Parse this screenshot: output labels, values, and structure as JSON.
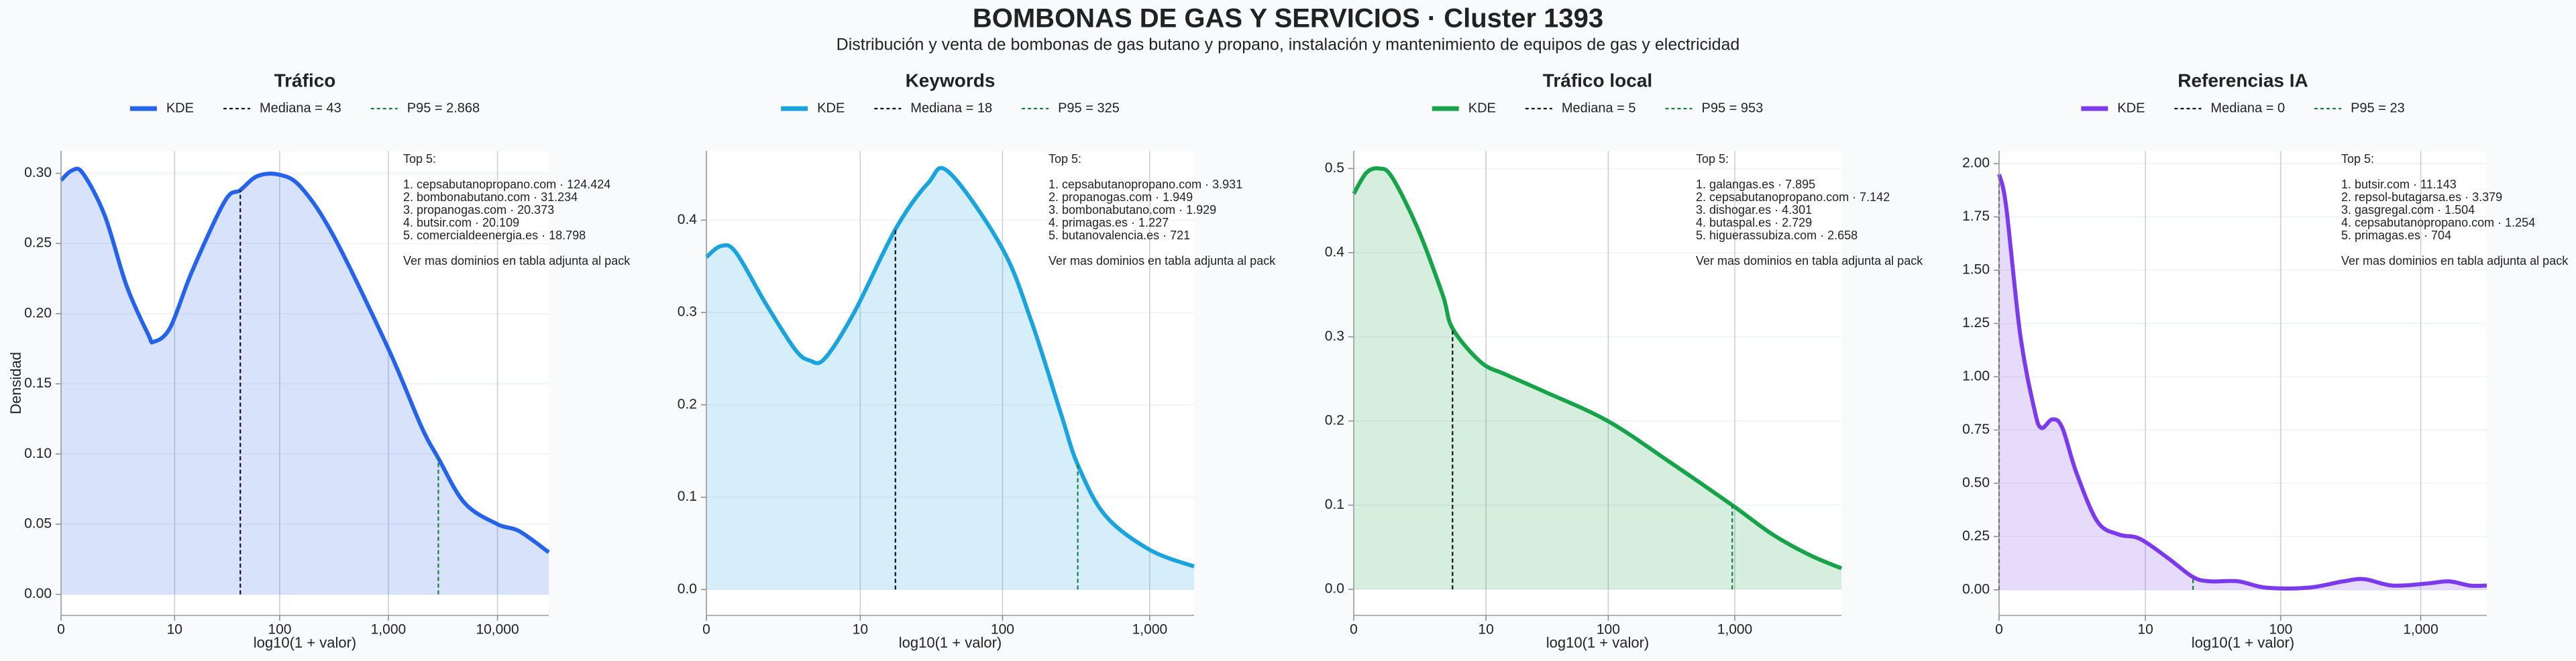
{
  "title": "BOMBONAS DE GAS Y SERVICIOS · Cluster 1393",
  "subtitle": "Distribución y venta de bombonas de gas butano y propano, instalación y mantenimiento de equipos de gas y electricidad",
  "chart_data": [
    {
      "type": "line",
      "title": "Tráfico",
      "xlabel": "log10(1 + valor)",
      "ylabel": "Densidad",
      "grid": true,
      "fill": true,
      "x": [
        0,
        0.1,
        0.2,
        0.4,
        0.6,
        0.8,
        0.85,
        1.0,
        1.2,
        1.5,
        1.643,
        1.8,
        2.0,
        2.2,
        2.5,
        3.0,
        3.3,
        3.458,
        3.7,
        4.0,
        4.2,
        4.47
      ],
      "series": [
        {
          "name": "KDE",
          "color": "#2563eb",
          "values": [
            0.295,
            0.302,
            0.3,
            0.27,
            0.22,
            0.185,
            0.18,
            0.19,
            0.23,
            0.28,
            0.288,
            0.298,
            0.299,
            0.29,
            0.255,
            0.175,
            0.12,
            0.097,
            0.065,
            0.05,
            0.045,
            0.03
          ]
        }
      ],
      "markers": [
        {
          "name": "Mediana = 43",
          "x": 1.643,
          "y": 0.288,
          "color": "#111111"
        },
        {
          "name": "P95 = 2.868",
          "x": 3.458,
          "y": 0.097,
          "color": "#15803d"
        }
      ],
      "xlim": [
        0,
        4.47
      ],
      "ylim": [
        -0.015,
        0.316
      ],
      "xticks": [
        0,
        {
          "value": 1.041,
          "label": "10"
        },
        {
          "value": 2.004,
          "label": "100"
        },
        {
          "value": 3.0,
          "label": "1,000"
        },
        {
          "value": 4.0,
          "label": "10,000"
        }
      ],
      "yticks": [
        {
          "value": 0,
          "label": "0.00"
        },
        0.05,
        {
          "value": 0.1,
          "label": "0.10"
        },
        0.15,
        {
          "value": 0.2,
          "label": "0.20"
        },
        0.25,
        {
          "value": 0.3,
          "label": "0.30"
        }
      ],
      "annotation": [
        "Top 5:",
        "1. cepsabutanopropano.com · 124.424",
        "2. bombonabutano.com · 31.234",
        "3. propanogas.com · 20.373",
        "4. butsir.com · 20.109",
        "5. comercialdeenergia.es · 18.798",
        "Ver mas dominios en tabla adjunta al pack"
      ]
    },
    {
      "type": "line",
      "title": "Keywords",
      "xlabel": "log10(1 + valor)",
      "grid": true,
      "fill": true,
      "x": [
        0,
        0.1,
        0.2,
        0.4,
        0.6,
        0.7,
        0.8,
        1.0,
        1.279,
        1.5,
        1.64,
        2.0,
        2.2,
        2.4,
        2.513,
        2.7,
        3.0,
        3.3
      ],
      "series": [
        {
          "name": "KDE",
          "color": "#1ba3dd",
          "values": [
            0.36,
            0.372,
            0.365,
            0.31,
            0.26,
            0.248,
            0.25,
            0.3,
            0.39,
            0.44,
            0.452,
            0.37,
            0.29,
            0.19,
            0.135,
            0.08,
            0.043,
            0.025
          ]
        }
      ],
      "markers": [
        {
          "name": "Mediana = 18",
          "x": 1.279,
          "y": 0.39,
          "color": "#111111"
        },
        {
          "name": "P95 = 325",
          "x": 2.513,
          "y": 0.135,
          "color": "#15803d"
        }
      ],
      "xlim": [
        0,
        3.3
      ],
      "ylim": [
        -0.028,
        0.475
      ],
      "xticks": [
        0,
        {
          "value": 1.041,
          "label": "10"
        },
        {
          "value": 2.004,
          "label": "100"
        },
        {
          "value": 3.0,
          "label": "1,000"
        }
      ],
      "yticks": [
        {
          "value": 0,
          "label": "0.0"
        },
        0.1,
        0.2,
        0.3,
        0.4
      ],
      "annotation": [
        "Top 5:",
        "1. cepsabutanopropano.com · 3.931",
        "2. propanogas.com · 1.949",
        "3. bombonabutano.com · 1.929",
        "4. primagas.es · 1.227",
        "5. butanovalencia.es · 721",
        "Ver mas dominios en tabla adjunta al pack"
      ]
    },
    {
      "type": "line",
      "title": "Tráfico local",
      "xlabel": "log10(1 + valor)",
      "grid": true,
      "fill": true,
      "x": [
        0,
        0.1,
        0.2,
        0.3,
        0.5,
        0.7,
        0.778,
        1.0,
        1.2,
        1.5,
        2.0,
        2.5,
        2.98,
        3.3,
        3.6,
        3.84
      ],
      "series": [
        {
          "name": "KDE",
          "color": "#16a34a",
          "values": [
            0.47,
            0.495,
            0.5,
            0.49,
            0.43,
            0.35,
            0.31,
            0.27,
            0.255,
            0.235,
            0.2,
            0.15,
            0.1,
            0.065,
            0.04,
            0.025
          ]
        }
      ],
      "markers": [
        {
          "name": "Mediana = 5",
          "x": 0.778,
          "y": 0.31,
          "color": "#111111"
        },
        {
          "name": "P95 = 953",
          "x": 2.98,
          "y": 0.1,
          "color": "#15803d"
        }
      ],
      "xlim": [
        0,
        3.84
      ],
      "ylim": [
        -0.031,
        0.521
      ],
      "xticks": [
        0,
        {
          "value": 1.041,
          "label": "10"
        },
        {
          "value": 2.004,
          "label": "100"
        },
        {
          "value": 3.0,
          "label": "1,000"
        }
      ],
      "yticks": [
        {
          "value": 0,
          "label": "0.0"
        },
        0.1,
        0.2,
        0.3,
        0.4,
        0.5
      ],
      "annotation": [
        "Top 5:",
        "1. galangas.es · 7.895",
        "2. cepsabutanopropano.com · 7.142",
        "3. dishogar.es · 4.301",
        "4. butaspal.es · 2.729",
        "5. higuerassubiza.com · 2.658",
        "Ver mas dominios en tabla adjunta al pack"
      ]
    },
    {
      "type": "line",
      "title": "Referencias IA",
      "xlabel": "log10(1 + valor)",
      "grid": true,
      "fill": true,
      "x": [
        0,
        0.05,
        0.15,
        0.25,
        0.3,
        0.38,
        0.45,
        0.55,
        0.7,
        0.85,
        1.0,
        1.2,
        1.38,
        1.5,
        1.7,
        1.9,
        2.2,
        2.45,
        2.6,
        2.8,
        3.05,
        3.2,
        3.35,
        3.47
      ],
      "series": [
        {
          "name": "KDE",
          "color": "#7c3aed",
          "values": [
            1.95,
            1.8,
            1.2,
            0.85,
            0.76,
            0.8,
            0.76,
            0.55,
            0.32,
            0.26,
            0.24,
            0.15,
            0.06,
            0.04,
            0.04,
            0.01,
            0.01,
            0.04,
            0.05,
            0.02,
            0.03,
            0.04,
            0.02,
            0.02
          ]
        }
      ],
      "markers": [
        {
          "name": "Mediana = 0",
          "x": 0,
          "y": 1.95,
          "color": "#111111"
        },
        {
          "name": "P95 = 23",
          "x": 1.38,
          "y": 0.06,
          "color": "#15803d"
        }
      ],
      "xlim": [
        0,
        3.47
      ],
      "ylim": [
        -0.12,
        2.06
      ],
      "xticks": [
        0,
        {
          "value": 1.041,
          "label": "10"
        },
        {
          "value": 2.004,
          "label": "100"
        },
        {
          "value": 3.0,
          "label": "1,000"
        }
      ],
      "yticks": [
        {
          "value": 0,
          "label": "0.00"
        },
        0.25,
        {
          "value": 0.5,
          "label": "0.50"
        },
        0.75,
        {
          "value": 1,
          "label": "1.00"
        },
        1.25,
        {
          "value": 1.5,
          "label": "1.50"
        },
        1.75,
        {
          "value": 2,
          "label": "2.00"
        }
      ],
      "annotation": [
        "Top 5:",
        "1. butsir.com · 11.143",
        "2. repsol-butagarsa.es · 3.379",
        "3. gasgregal.com · 1.504",
        "4. cepsabutanopropano.com · 1.254",
        "5. primagas.es · 704",
        "Ver mas dominios en tabla adjunta al pack"
      ]
    }
  ]
}
